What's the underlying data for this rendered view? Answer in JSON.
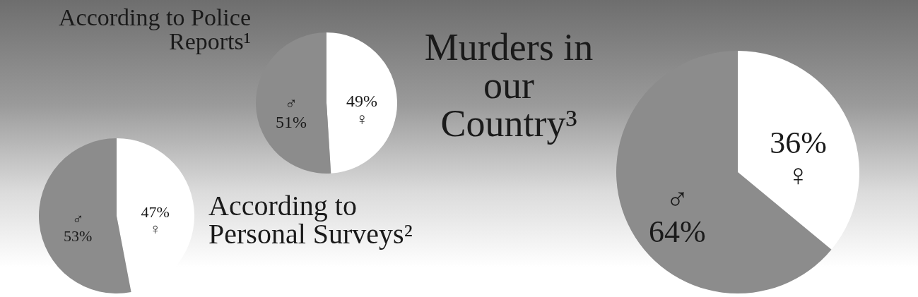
{
  "chart_data": [
    {
      "type": "pie",
      "title": "According to Police Reports¹",
      "categories": [
        "♀",
        "♂"
      ],
      "values": [
        49,
        51
      ],
      "colors": [
        "#ffffff",
        "#8c8c8c"
      ],
      "value_labels": [
        "49%",
        "51%"
      ]
    },
    {
      "type": "pie",
      "title": "According to Personal Surveys²",
      "categories": [
        "♀",
        "♂"
      ],
      "values": [
        47,
        53
      ],
      "colors": [
        "#ffffff",
        "#8c8c8c"
      ],
      "value_labels": [
        "47%",
        "53%"
      ]
    },
    {
      "type": "pie",
      "title": "Murders in our Country³",
      "categories": [
        "♀",
        "♂"
      ],
      "values": [
        36,
        64
      ],
      "colors": [
        "#ffffff",
        "#8c8c8c"
      ],
      "value_labels": [
        "36%",
        "64%"
      ]
    }
  ]
}
